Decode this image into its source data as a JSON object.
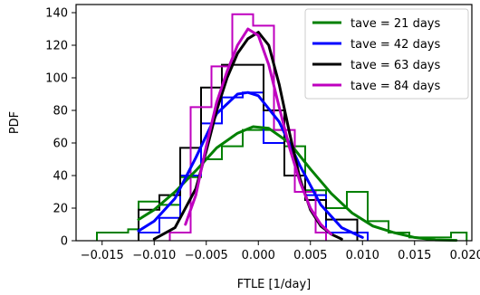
{
  "chart_data": {
    "type": "line",
    "title": "",
    "xlabel": "FTLE [1/day]",
    "ylabel": "PDF",
    "xlim": [
      -0.0175,
      0.0205
    ],
    "ylim": [
      0,
      145
    ],
    "x_ticks": [
      -0.015,
      -0.01,
      -0.005,
      0.0,
      0.005,
      0.01,
      0.015,
      0.02
    ],
    "x_tick_labels": [
      "−0.015",
      "−0.010",
      "−0.005",
      "0.000",
      "0.005",
      "0.010",
      "0.015",
      "0.020"
    ],
    "y_ticks": [
      0,
      20,
      40,
      60,
      80,
      100,
      120,
      140
    ],
    "y_tick_labels": [
      "0",
      "20",
      "40",
      "60",
      "80",
      "100",
      "120",
      "140"
    ],
    "grid": false,
    "legend_position": "top-right",
    "series": [
      {
        "name": "tave = 21 days",
        "color": "#008000",
        "hist": {
          "edges": [
            -0.0155,
            -0.0125,
            -0.0115,
            -0.0095,
            -0.0075,
            -0.0055,
            -0.0035,
            -0.0015,
            0.0005,
            0.0025,
            0.0045,
            0.0065,
            0.0085,
            0.0105,
            0.0125,
            0.0145,
            0.0165,
            0.0185,
            0.02
          ],
          "values": [
            5,
            7,
            24,
            22,
            39,
            50,
            58,
            68,
            68,
            58,
            31,
            20,
            30,
            12,
            5,
            2,
            2,
            5
          ]
        },
        "kde": {
          "x": [
            -0.0115,
            -0.01,
            -0.008,
            -0.006,
            -0.004,
            -0.002,
            -0.0005,
            0.001,
            0.003,
            0.005,
            0.007,
            0.009,
            0.011,
            0.013,
            0.015,
            0.017,
            0.019
          ],
          "y": [
            13,
            19,
            30,
            43,
            57,
            66,
            70,
            69,
            60,
            44,
            29,
            17,
            9,
            5,
            2,
            0.5,
            0.2
          ]
        }
      },
      {
        "name": "tave = 42 days",
        "color": "#0000ff",
        "hist": {
          "edges": [
            -0.0115,
            -0.0095,
            -0.0075,
            -0.0055,
            -0.0035,
            -0.0015,
            0.0005,
            0.0025,
            0.0045,
            0.0065,
            0.0085,
            0.0105
          ],
          "values": [
            5,
            14,
            40,
            72,
            88,
            91,
            60,
            40,
            28,
            5,
            5
          ]
        },
        "kde": {
          "x": [
            -0.0115,
            -0.01,
            -0.008,
            -0.006,
            -0.004,
            -0.002,
            -0.001,
            0.0,
            0.002,
            0.004,
            0.006,
            0.008,
            0.01
          ],
          "y": [
            6,
            12,
            26,
            51,
            78,
            90,
            91,
            89,
            73,
            46,
            22,
            8,
            2
          ]
        }
      },
      {
        "name": "tave = 63 days",
        "color": "#000000",
        "hist": {
          "edges": [
            -0.0115,
            -0.0095,
            -0.0075,
            -0.0055,
            -0.0035,
            -0.0015,
            0.0005,
            0.0025,
            0.0045,
            0.0065,
            0.0085,
            0.0095
          ],
          "values": [
            19,
            28,
            57,
            94,
            108,
            108,
            80,
            40,
            25,
            13,
            13
          ]
        },
        "kde": {
          "x": [
            -0.01,
            -0.008,
            -0.006,
            -0.005,
            -0.004,
            -0.003,
            -0.002,
            -0.001,
            0.0,
            0.001,
            0.002,
            0.003,
            0.004,
            0.005,
            0.006,
            0.007,
            0.008
          ],
          "y": [
            1,
            8,
            32,
            55,
            80,
            100,
            115,
            124,
            128,
            120,
            96,
            66,
            38,
            19,
            9,
            4,
            1
          ]
        }
      },
      {
        "name": "tave = 84 days",
        "color": "#bf00bf",
        "hist": {
          "edges": [
            -0.0085,
            -0.0065,
            -0.0045,
            -0.0025,
            -0.0005,
            0.0015,
            0.0035,
            0.0055,
            0.0065
          ],
          "values": [
            5,
            82,
            107,
            139,
            132,
            68,
            30,
            5
          ]
        },
        "kde": {
          "x": [
            -0.007,
            -0.006,
            -0.005,
            -0.004,
            -0.003,
            -0.002,
            -0.001,
            0.0,
            0.001,
            0.002,
            0.003,
            0.004,
            0.005,
            0.006,
            0.007
          ],
          "y": [
            10,
            28,
            58,
            85,
            104,
            120,
            130,
            126,
            108,
            82,
            57,
            36,
            20,
            10,
            4
          ]
        }
      }
    ]
  }
}
